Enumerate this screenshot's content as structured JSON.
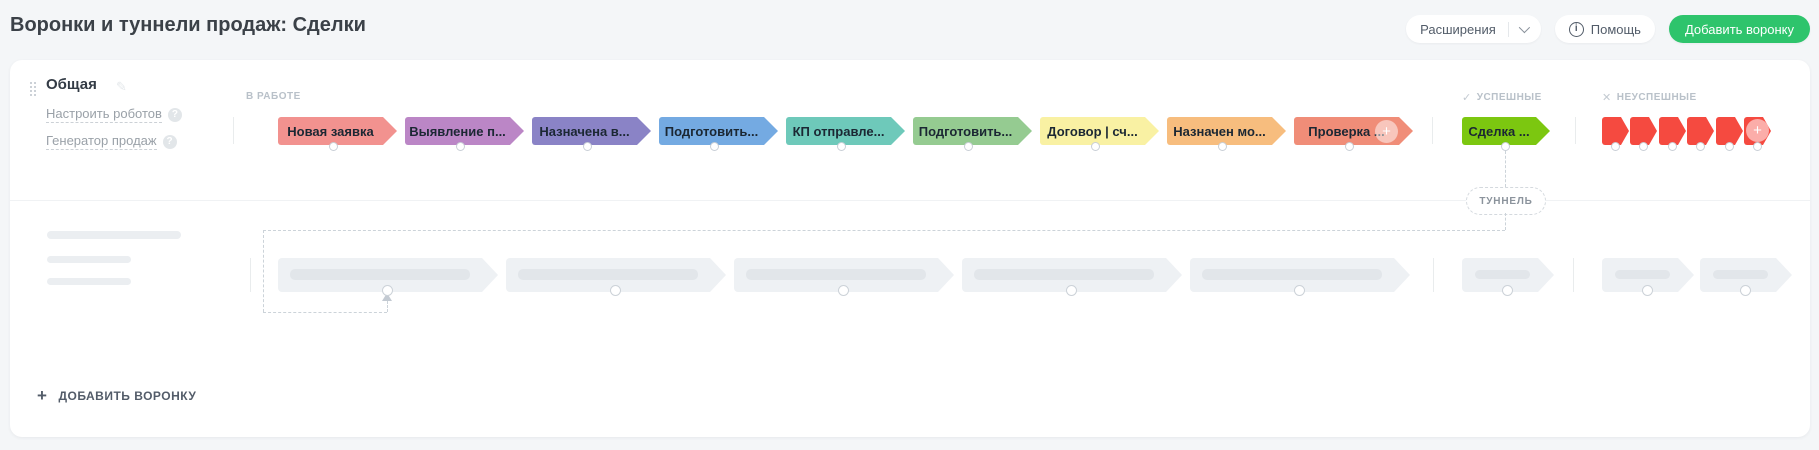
{
  "page_title": "Воронки и туннели продаж: Сделки",
  "header": {
    "extensions_label": "Расширения",
    "help_label": "Помощь",
    "add_funnel_label": "Добавить воронку",
    "add_funnel_color": "#2ec46c"
  },
  "icons": {
    "check": "✓",
    "close": "✕",
    "plus": "+",
    "question": "?",
    "edit": "✎",
    "help": "i"
  },
  "funnel": {
    "name": "Общая",
    "robots_link": "Настроить роботов",
    "generator_link": "Генератор продаж",
    "in_progress_label": "В РАБОТЕ",
    "success_label": "УСПЕШНЫЕ",
    "fail_label": "НЕУСПЕШНЫЕ",
    "tunnel_label": "ТУННЕЛЬ",
    "stages": [
      {
        "label": "Новая заявка",
        "color": "#f2928f"
      },
      {
        "label": "Выявление п...",
        "color": "#bb86c6"
      },
      {
        "label": "Назначена в...",
        "color": "#8a83c6"
      },
      {
        "label": "Подготовить...",
        "color": "#74aae2"
      },
      {
        "label": "КП отправле...",
        "color": "#6ec9ba"
      },
      {
        "label": "Подготовить...",
        "color": "#95cb91"
      },
      {
        "label": "Договор | сч...",
        "color": "#f9f1a3"
      },
      {
        "label": "Назначен мо...",
        "color": "#f7bd7e"
      },
      {
        "label": "Проверка ...",
        "color": "#f08d78",
        "has_add_button": true
      }
    ],
    "success_stage": {
      "label": "Сделка ...",
      "color": "#7cc710"
    },
    "fail_stage_color": "#f54a40",
    "fail_stage_count": 6
  },
  "skeleton_funnel": {
    "in_progress_count": 5,
    "success_count": 1,
    "fail_count": 2
  },
  "footer": {
    "add_funnel_label": "ДОБАВИТЬ ВОРОНКУ"
  }
}
